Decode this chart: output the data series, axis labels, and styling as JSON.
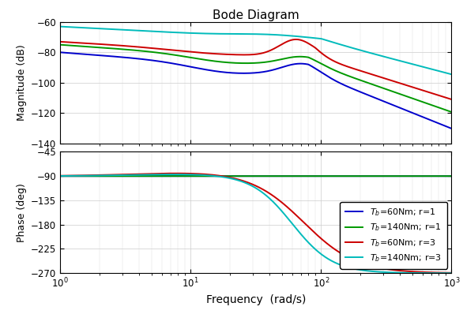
{
  "title": "Bode Diagram",
  "xlabel": "Frequency  (rad/s)",
  "ylabel_mag": "Magnitude (dB)",
  "ylabel_phase": "Phase (deg)",
  "mag_ylim": [
    -140,
    -60
  ],
  "mag_yticks": [
    -140,
    -120,
    -100,
    -80,
    -60
  ],
  "phase_ylim": [
    -270,
    -45
  ],
  "phase_yticks": [
    -270,
    -225,
    -180,
    -135,
    -90,
    -45
  ],
  "xlim_log": [
    1,
    1000
  ],
  "colors": {
    "blue": "#0000CC",
    "green": "#009900",
    "red": "#CC0000",
    "cyan": "#00BBBB"
  },
  "legend": [
    {
      "label": "$T_b$=60Nm; r=1",
      "color": "#0000CC"
    },
    {
      "label": "$T_b$=140Nm; r=1",
      "color": "#009900"
    },
    {
      "label": "$T_b$=60Nm; r=3",
      "color": "#CC0000"
    },
    {
      "label": "$T_b$=140Nm; r=3",
      "color": "#00BBBB"
    }
  ]
}
